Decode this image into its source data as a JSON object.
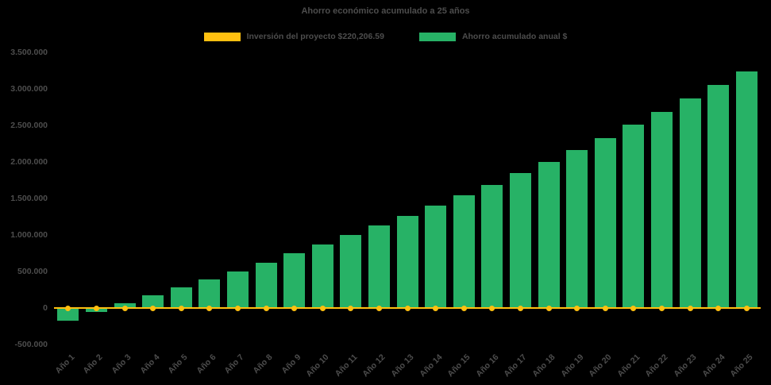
{
  "chart_data": {
    "type": "bar",
    "title": "Ahorro económico acumulado a 25 años",
    "categories": [
      "Año 1",
      "Año 2",
      "Año 3",
      "Año 4",
      "Año 5",
      "Año 6",
      "Año 7",
      "Año 8",
      "Año 9",
      "Año 10",
      "Año 11",
      "Año 12",
      "Año 13",
      "Año 14",
      "Año 15",
      "Año 16",
      "Año 17",
      "Año 18",
      "Año 19",
      "Año 20",
      "Año 21",
      "Año 22",
      "Año 23",
      "Año 24",
      "Año 25"
    ],
    "series": [
      {
        "name": "Inversión del proyecto $220,206.59",
        "type": "line",
        "color": "#FFC010",
        "values": [
          0,
          0,
          0,
          0,
          0,
          0,
          0,
          0,
          0,
          0,
          0,
          0,
          0,
          0,
          0,
          0,
          0,
          0,
          0,
          0,
          0,
          0,
          0,
          0,
          0
        ]
      },
      {
        "name": "Ahorro acumulado anual $",
        "type": "bar",
        "color": "#27B266",
        "values": [
          -170000,
          -50000,
          60000,
          170000,
          280000,
          390000,
          505000,
          620000,
          745000,
          870000,
          1000000,
          1130000,
          1265000,
          1400000,
          1545000,
          1690000,
          1845000,
          2000000,
          2165000,
          2330000,
          2510000,
          2690000,
          2865000,
          3050000,
          3240000
        ]
      }
    ],
    "ylim": [
      -500000,
      3500000
    ],
    "ytick_step": 500000,
    "ytick_labels": [
      "3.500.000",
      "3.000.000",
      "2.500.000",
      "2.000.000",
      "1.500.000",
      "1.000.000",
      "500.000",
      "0",
      "-500.000"
    ],
    "grid": false,
    "legend_position": "top",
    "background": "#000000",
    "text_color": "#4d4d4d"
  }
}
